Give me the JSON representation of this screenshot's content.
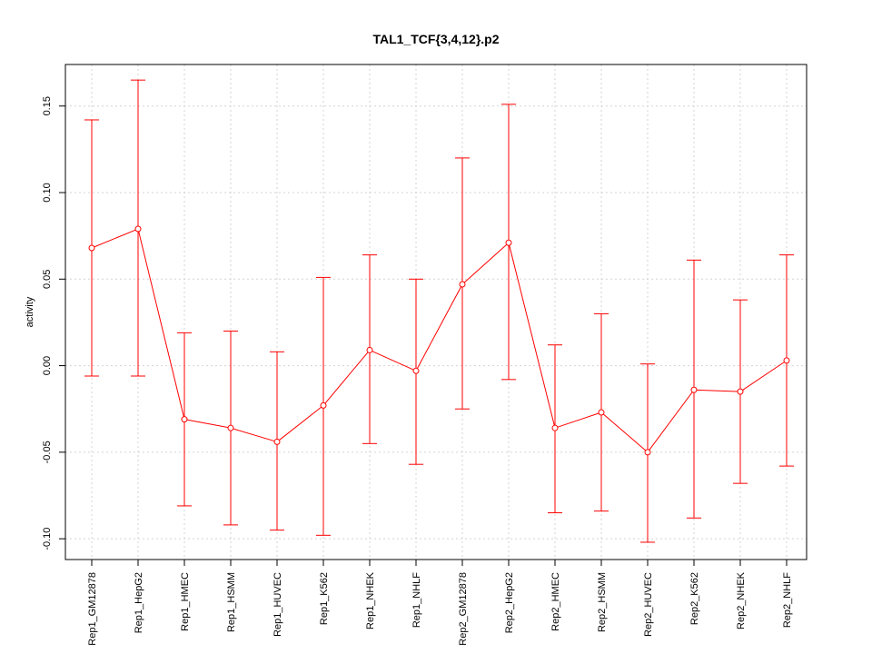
{
  "chart_data": {
    "type": "line",
    "title": "TAL1_TCF{3,4,12}.p2",
    "xlabel": "",
    "ylabel": "activity",
    "ylim": [
      -0.112,
      0.174
    ],
    "yticks": [
      -0.1,
      -0.05,
      0.0,
      0.05,
      0.1,
      0.15
    ],
    "ytick_labels": [
      "-0.10",
      "-0.05",
      "0.00",
      "0.05",
      "0.10",
      "0.15"
    ],
    "grid": true,
    "categories": [
      "Rep1_GM12878",
      "Rep1_HepG2",
      "Rep1_HMEC",
      "Rep1_HSMM",
      "Rep1_HUVEC",
      "Rep1_K562",
      "Rep1_NHEK",
      "Rep1_NHLF",
      "Rep2_GM12878",
      "Rep2_HepG2",
      "Rep2_HMEC",
      "Rep2_HSMM",
      "Rep2_HUVEC",
      "Rep2_K562",
      "Rep2_NHEK",
      "Rep2_NHLF"
    ],
    "series": [
      {
        "color": "#ff0000",
        "values": [
          0.068,
          0.079,
          -0.031,
          -0.036,
          -0.044,
          -0.023,
          0.009,
          -0.003,
          0.047,
          0.071,
          -0.036,
          -0.027,
          -0.05,
          -0.014,
          -0.015,
          0.003
        ],
        "upper": [
          0.142,
          0.165,
          0.019,
          0.02,
          0.008,
          0.051,
          0.064,
          0.05,
          0.12,
          0.151,
          0.012,
          0.03,
          0.001,
          0.061,
          0.038,
          0.064
        ],
        "lower": [
          -0.006,
          -0.006,
          -0.081,
          -0.092,
          -0.095,
          -0.098,
          -0.045,
          -0.057,
          -0.025,
          -0.008,
          -0.085,
          -0.084,
          -0.102,
          -0.088,
          -0.068,
          -0.058
        ]
      }
    ]
  }
}
